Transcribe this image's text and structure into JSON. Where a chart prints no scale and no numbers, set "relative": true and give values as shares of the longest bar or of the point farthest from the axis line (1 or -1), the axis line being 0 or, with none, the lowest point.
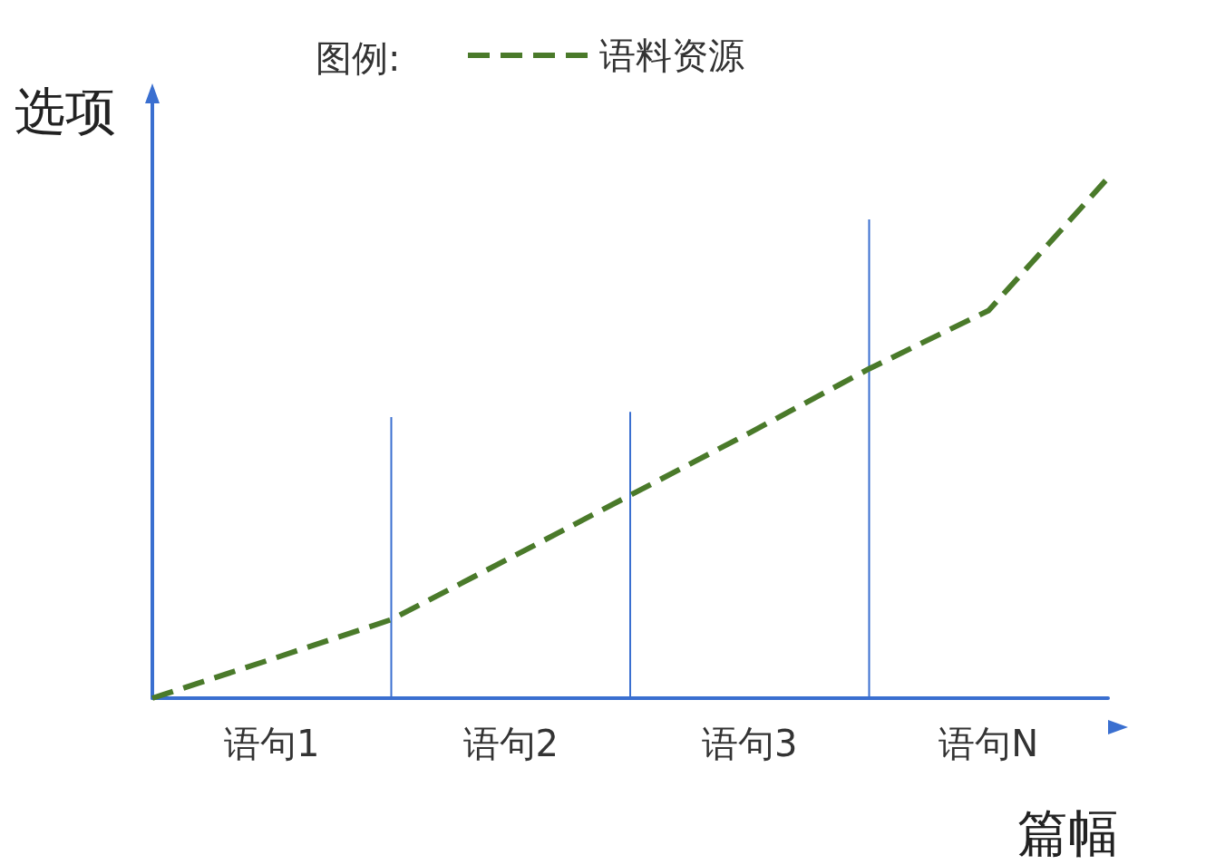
{
  "chart_data": {
    "type": "line",
    "relative": true,
    "xlabel": "篇幅",
    "ylabel": "选项",
    "legend_title": "图例:",
    "legend": "top",
    "categories": [
      null,
      "语句1",
      null,
      "语句2",
      null,
      "语句3",
      null,
      "语句N",
      null
    ],
    "series": [
      {
        "name": "语料资源",
        "color": "#4a7a2a",
        "line_style": "dashed",
        "marker": "none",
        "values": [
          0,
          0.075,
          0.151,
          0.27,
          0.39,
          0.51,
          0.633,
          0.745,
          1
        ]
      },
      {
        "type": "bar",
        "color": "#3a6fd0",
        "values": [
          null,
          null,
          0.54,
          null,
          0.55,
          null,
          0.92,
          null,
          null
        ]
      }
    ]
  }
}
